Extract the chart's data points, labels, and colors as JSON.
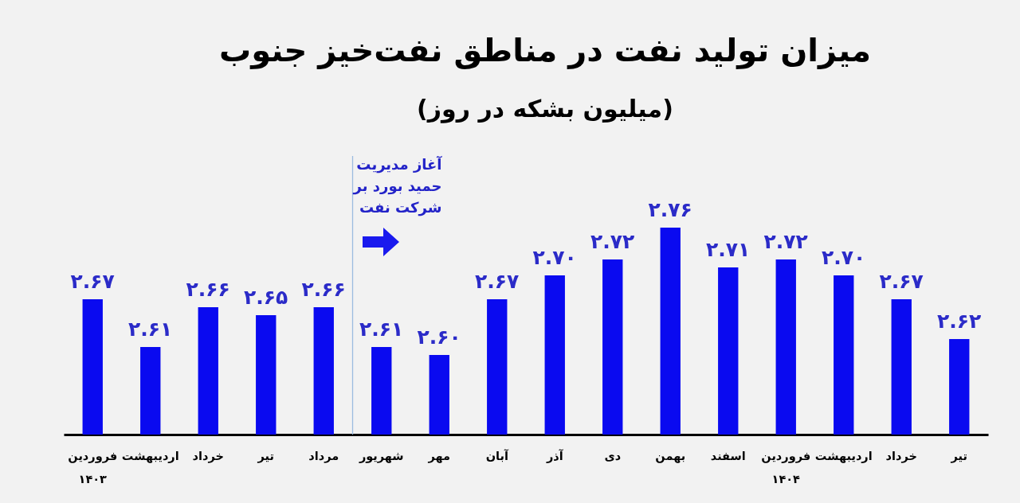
{
  "chart_data": {
    "type": "bar",
    "title": "میزان تولید نفت در مناطق نفت‌خیز جنوب",
    "subtitle": "(میلیون بشکه در روز)",
    "categories": [
      "فروردین\n۱۴۰۳",
      "اردیبهشت",
      "خرداد",
      "تیر",
      "مرداد",
      "شهریور",
      "مهر",
      "آبان",
      "آذر",
      "دی",
      "بهمن",
      "اسفند",
      "فروردین\n۱۴۰۴",
      "اردیبهشت",
      "خرداد",
      "تیر"
    ],
    "values": [
      2.67,
      2.61,
      2.66,
      2.65,
      2.66,
      2.61,
      2.6,
      2.67,
      2.7,
      2.72,
      2.76,
      2.71,
      2.72,
      2.7,
      2.67,
      2.62
    ],
    "value_labels": [
      "۲.۶۷",
      "۲.۶۱",
      "۲.۶۶",
      "۲.۶۵",
      "۲.۶۶",
      "۲.۶۱",
      "۲.۶۰",
      "۲.۶۷",
      "۲.۷۰",
      "۲.۷۲",
      "۲.۷۶",
      "۲.۷۱",
      "۲.۷۲",
      "۲.۷۰",
      "۲.۶۷",
      "۲.۶۲"
    ],
    "color": "#0a0af0",
    "ylim": [
      2.5,
      2.85
    ],
    "tick_labels": "x",
    "ref_lines": [
      {
        "axis": "x",
        "value": "شهریور",
        "label": "آغاز مدیریت\nحمید بورد بر\nشرکت نفت",
        "color": "#9bbbe0"
      }
    ]
  }
}
